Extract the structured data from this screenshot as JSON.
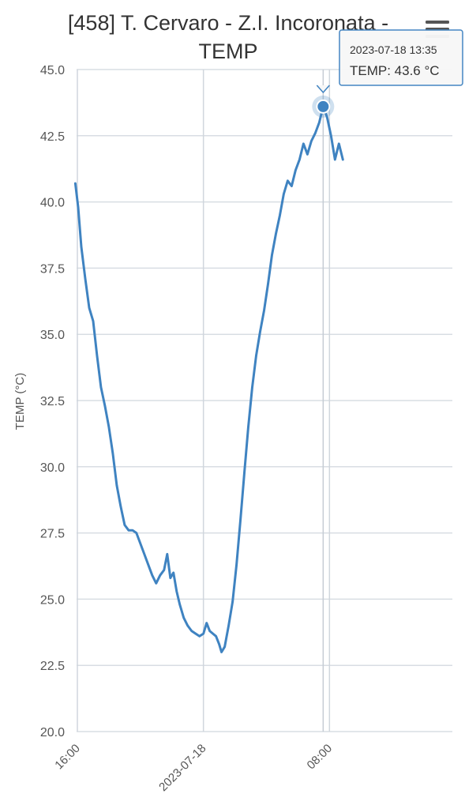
{
  "chart_data": {
    "type": "line",
    "title_line1": "[458] T. Cervaro - Z.I. Incoronata -",
    "title_line2": "TEMP",
    "ylabel": "TEMP (°C)",
    "ylim": [
      20.0,
      45.0
    ],
    "y_ticks": [
      "20.0",
      "22.5",
      "25.0",
      "27.5",
      "30.0",
      "32.5",
      "35.0",
      "37.5",
      "40.0",
      "42.5",
      "45.0"
    ],
    "x_ticks": [
      {
        "label": "16:00",
        "hours": 16
      },
      {
        "label": "2023-07-18",
        "hours": 24
      },
      {
        "label": "08:00",
        "hours": 32
      }
    ],
    "x_range_hours": [
      15.95,
      39.8
    ],
    "grid": true,
    "series": [
      {
        "color": "#3f83c1",
        "points": [
          [
            15.87,
            40.7
          ],
          [
            16.05,
            39.8
          ],
          [
            16.25,
            38.3
          ],
          [
            16.5,
            37.1
          ],
          [
            16.75,
            36.0
          ],
          [
            17.0,
            35.5
          ],
          [
            17.25,
            34.2
          ],
          [
            17.5,
            33.0
          ],
          [
            17.75,
            32.3
          ],
          [
            18.0,
            31.5
          ],
          [
            18.25,
            30.5
          ],
          [
            18.5,
            29.3
          ],
          [
            18.75,
            28.5
          ],
          [
            19.0,
            27.8
          ],
          [
            19.25,
            27.6
          ],
          [
            19.5,
            27.6
          ],
          [
            19.75,
            27.5
          ],
          [
            20.0,
            27.1
          ],
          [
            20.25,
            26.7
          ],
          [
            20.5,
            26.3
          ],
          [
            20.75,
            25.9
          ],
          [
            21.0,
            25.6
          ],
          [
            21.25,
            25.9
          ],
          [
            21.5,
            26.1
          ],
          [
            21.7,
            26.7
          ],
          [
            21.9,
            25.8
          ],
          [
            22.1,
            26.0
          ],
          [
            22.3,
            25.3
          ],
          [
            22.5,
            24.8
          ],
          [
            22.75,
            24.3
          ],
          [
            23.0,
            24.0
          ],
          [
            23.25,
            23.8
          ],
          [
            23.5,
            23.7
          ],
          [
            23.75,
            23.6
          ],
          [
            24.0,
            23.7
          ],
          [
            24.2,
            24.1
          ],
          [
            24.4,
            23.8
          ],
          [
            24.6,
            23.7
          ],
          [
            24.8,
            23.6
          ],
          [
            25.0,
            23.3
          ],
          [
            25.15,
            23.0
          ],
          [
            25.35,
            23.2
          ],
          [
            25.6,
            24.0
          ],
          [
            25.85,
            24.9
          ],
          [
            26.1,
            26.3
          ],
          [
            26.35,
            28.0
          ],
          [
            26.6,
            29.8
          ],
          [
            26.85,
            31.5
          ],
          [
            27.1,
            33.0
          ],
          [
            27.35,
            34.2
          ],
          [
            27.6,
            35.1
          ],
          [
            27.85,
            35.9
          ],
          [
            28.1,
            36.9
          ],
          [
            28.35,
            38.0
          ],
          [
            28.6,
            38.8
          ],
          [
            28.85,
            39.5
          ],
          [
            29.1,
            40.3
          ],
          [
            29.35,
            40.8
          ],
          [
            29.6,
            40.6
          ],
          [
            29.85,
            41.2
          ],
          [
            30.1,
            41.6
          ],
          [
            30.35,
            42.2
          ],
          [
            30.6,
            41.8
          ],
          [
            30.85,
            42.3
          ],
          [
            31.1,
            42.6
          ],
          [
            31.35,
            43.0
          ],
          [
            31.6,
            43.6
          ],
          [
            31.85,
            43.2
          ],
          [
            32.1,
            42.5
          ],
          [
            32.35,
            41.6
          ],
          [
            32.6,
            42.2
          ],
          [
            32.85,
            41.6
          ]
        ]
      }
    ],
    "tooltip": {
      "date": "2023-07-18 13:35",
      "value_text": "TEMP: 43.6 °C",
      "x_hours": 31.6,
      "y": 43.6
    }
  }
}
